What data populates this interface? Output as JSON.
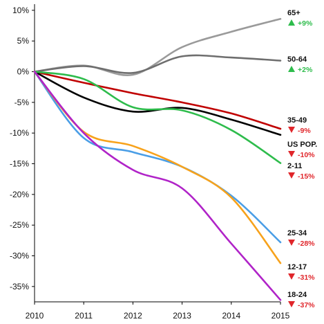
{
  "chart_data": {
    "type": "line",
    "title": "",
    "xlabel": "",
    "ylabel": "",
    "x": [
      2010,
      2011,
      2012,
      2013,
      2014,
      2015
    ],
    "x_tick_labels": [
      "2010",
      "2011",
      "2012",
      "2013",
      "2014",
      "2015"
    ],
    "ylim": [
      -37.5,
      11
    ],
    "y_ticks": [
      10,
      5,
      0,
      -5,
      -10,
      -15,
      -20,
      -25,
      -30,
      -35
    ],
    "y_tick_labels": [
      "10%",
      "5%",
      "0%",
      "-5%",
      "-10%",
      "-15%",
      "-20%",
      "-25%",
      "-30%",
      "-35%"
    ],
    "grid": false,
    "legend": "end-labels",
    "series": [
      {
        "name": "65+",
        "change": "+9%",
        "direction": "up",
        "color": "#9a9a9a",
        "values": [
          0,
          1.0,
          -0.5,
          4.0,
          6.5,
          8.6
        ]
      },
      {
        "name": "50-64",
        "change": "+2%",
        "direction": "up",
        "color": "#6e6e6e",
        "values": [
          0,
          0.9,
          -0.2,
          2.5,
          2.3,
          1.8
        ]
      },
      {
        "name": "35-49",
        "change": "-9%",
        "direction": "down",
        "color": "#c00000",
        "values": [
          0,
          -1.8,
          -3.5,
          -5.0,
          -6.8,
          -9.3
        ]
      },
      {
        "name": "US POP.",
        "change": "-10%",
        "direction": "down",
        "color": "#000000",
        "values": [
          0,
          -4.2,
          -6.5,
          -5.9,
          -7.8,
          -10.3
        ]
      },
      {
        "name": "2-11",
        "change": "-15%",
        "direction": "down",
        "color": "#2ebc4c",
        "values": [
          0,
          -1.2,
          -5.8,
          -6.3,
          -9.5,
          -14.9
        ]
      },
      {
        "name": "25-34",
        "change": "-28%",
        "direction": "down",
        "color": "#4a9ee6",
        "values": [
          0,
          -10.8,
          -13.1,
          -15.5,
          -20.2,
          -27.8
        ]
      },
      {
        "name": "12-17",
        "change": "-31%",
        "direction": "down",
        "color": "#f7a21b",
        "values": [
          0,
          -9.8,
          -12.1,
          -15.5,
          -20.5,
          -31.2
        ]
      },
      {
        "name": "18-24",
        "change": "-37%",
        "direction": "down",
        "color": "#b023c8",
        "values": [
          0,
          -10.0,
          -16.0,
          -19.0,
          -28.0,
          -37.2
        ]
      }
    ],
    "colors": {
      "up": "#2ebc4c",
      "down": "#e0262b",
      "axis": "#000000"
    }
  }
}
